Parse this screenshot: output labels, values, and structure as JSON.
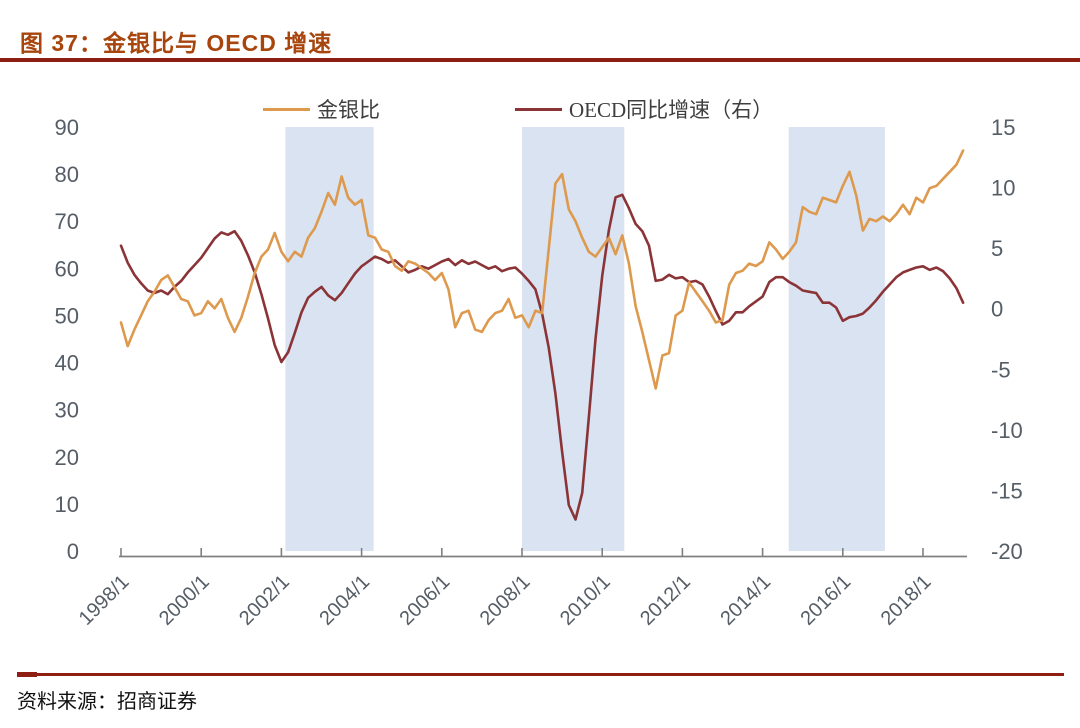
{
  "title": "图 37：金银比与 OECD 增速",
  "source": "资料来源：招商证券",
  "colors": {
    "title": "#a7450d",
    "rule": "#8e1d12",
    "band": "#dae3f1",
    "axis_label": "#555d66",
    "axis_line": "#808080",
    "legend_text": "#3f3f3f"
  },
  "chart_data": {
    "type": "line",
    "title": "金银比与 OECD 增速",
    "legend_position": "top",
    "grid": false,
    "x_axis": {
      "unit": "year",
      "start": 1998.0,
      "step": 0.1666667
    },
    "x_ticks": [
      {
        "year": 1998,
        "label": "1998/1"
      },
      {
        "year": 2000,
        "label": "2000/1"
      },
      {
        "year": 2002,
        "label": "2002/1"
      },
      {
        "year": 2004,
        "label": "2004/1"
      },
      {
        "year": 2006,
        "label": "2006/1"
      },
      {
        "year": 2008,
        "label": "2008/1"
      },
      {
        "year": 2010,
        "label": "2010/1"
      },
      {
        "year": 2012,
        "label": "2012/1"
      },
      {
        "year": 2014,
        "label": "2014/1"
      },
      {
        "year": 2016,
        "label": "2016/1"
      },
      {
        "year": 2018,
        "label": "2018/1"
      }
    ],
    "left_axis": {
      "range": [
        0,
        90
      ],
      "ticks": [
        0,
        10,
        20,
        30,
        40,
        50,
        60,
        70,
        80,
        90
      ]
    },
    "right_axis": {
      "range": [
        -20,
        15
      ],
      "ticks": [
        -20,
        -15,
        -10,
        -5,
        0,
        5,
        10,
        15
      ]
    },
    "shaded_bands": [
      {
        "x0": 2002.1,
        "x1": 2004.3
      },
      {
        "x0": 2008.0,
        "x1": 2010.55
      },
      {
        "x0": 2014.65,
        "x1": 2017.05
      }
    ],
    "series": [
      {
        "name": "金银比",
        "axis": "left",
        "color": "#dd9a4e",
        "values": [
          48.5,
          43.5,
          47,
          50,
          53,
          55,
          57.5,
          58.5,
          56,
          53.5,
          53,
          50,
          50.5,
          53,
          51.5,
          53.5,
          49.5,
          46.5,
          49.5,
          54,
          59,
          62.5,
          64,
          67.5,
          63.5,
          61.5,
          63.5,
          62.5,
          66.5,
          68.5,
          72,
          76,
          73.5,
          79.5,
          75,
          73.5,
          74.5,
          67,
          66.5,
          64,
          63.5,
          60.5,
          59.5,
          61.5,
          61,
          60,
          59,
          57.5,
          59,
          55.5,
          47.5,
          50.5,
          51,
          47,
          46.5,
          49,
          50.5,
          51,
          53.5,
          49.5,
          50,
          47.5,
          51,
          50.5,
          64,
          78,
          80,
          72.5,
          70,
          66.5,
          63.5,
          62.5,
          64.5,
          66.5,
          63,
          67,
          61,
          52,
          46.5,
          40.5,
          34.5,
          41.5,
          42,
          50,
          51,
          57,
          55,
          53,
          51,
          48.5,
          49,
          56.5,
          59,
          59.5,
          61,
          60.5,
          61.5,
          65.5,
          64,
          62,
          63.5,
          65.5,
          73,
          72,
          71.5,
          75,
          74.5,
          74,
          77.5,
          80.5,
          75.5,
          68,
          70.5,
          70,
          71,
          70,
          71.5,
          73.5,
          71.5,
          75,
          74,
          77,
          77.5,
          79,
          80.5,
          82,
          85
        ]
      },
      {
        "name": "OECD同比增速（右）",
        "axis": "right",
        "color": "#8b3437",
        "values": [
          5.2,
          3.8,
          2.8,
          2.1,
          1.5,
          1.3,
          1.5,
          1.2,
          1.8,
          2.3,
          3.0,
          3.6,
          4.2,
          5.0,
          5.8,
          6.3,
          6.1,
          6.4,
          5.6,
          4.4,
          3.0,
          1.2,
          -0.8,
          -3.0,
          -4.4,
          -3.6,
          -2.0,
          -0.3,
          0.9,
          1.4,
          1.8,
          1.1,
          0.7,
          1.3,
          2.1,
          2.9,
          3.5,
          3.9,
          4.3,
          4.1,
          3.8,
          4.0,
          3.5,
          3.0,
          3.2,
          3.5,
          3.3,
          3.6,
          3.9,
          4.1,
          3.6,
          4.0,
          3.7,
          3.9,
          3.6,
          3.3,
          3.5,
          3.1,
          3.3,
          3.4,
          2.9,
          2.3,
          1.6,
          -0.4,
          -3.2,
          -7.0,
          -11.8,
          -16.2,
          -17.4,
          -15.2,
          -9.0,
          -2.5,
          2.7,
          6.5,
          9.2,
          9.4,
          8.3,
          7.0,
          6.4,
          5.2,
          2.3,
          2.4,
          2.8,
          2.5,
          2.6,
          2.2,
          2.3,
          2.0,
          1.0,
          -0.2,
          -1.3,
          -1.0,
          -0.3,
          -0.3,
          0.2,
          0.6,
          1.0,
          2.2,
          2.6,
          2.6,
          2.2,
          1.9,
          1.5,
          1.4,
          1.3,
          0.5,
          0.5,
          0.1,
          -1.0,
          -0.7,
          -0.6,
          -0.4,
          0.1,
          0.7,
          1.4,
          2.0,
          2.6,
          3.0,
          3.2,
          3.4,
          3.5,
          3.2,
          3.4,
          3.1,
          2.5,
          1.7,
          0.5
        ]
      }
    ]
  }
}
